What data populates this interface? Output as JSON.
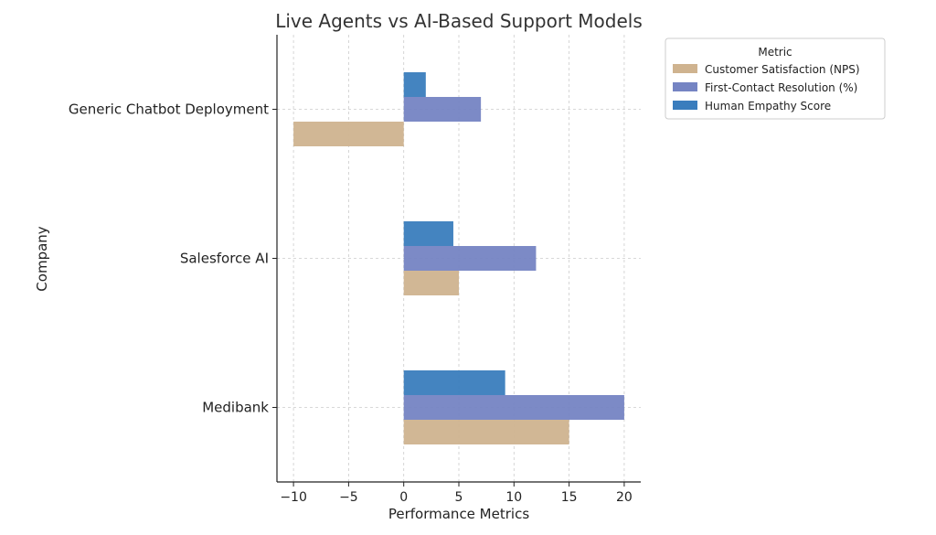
{
  "chart_data": {
    "type": "bar",
    "orientation": "horizontal",
    "title": "Live Agents vs AI-Based Support Models",
    "xlabel": "Performance Metrics",
    "ylabel": "Company",
    "categories": [
      "Medibank",
      "Salesforce AI",
      "Generic Chatbot Deployment"
    ],
    "series": [
      {
        "name": "Customer Satisfaction (NPS)",
        "color": "#cfb38f",
        "values": [
          15,
          5,
          -10
        ]
      },
      {
        "name": "First-Contact Resolution (%)",
        "color": "#7584c3",
        "values": [
          20,
          12,
          7
        ]
      },
      {
        "name": "Human Empathy Score",
        "color": "#3a7dbd",
        "values": [
          9.2,
          4.5,
          2
        ]
      }
    ],
    "xlim": [
      -11.5,
      21.5
    ],
    "xticks": [
      -10,
      -5,
      0,
      5,
      10,
      15,
      20
    ],
    "xtick_labels": [
      "−10",
      "−5",
      "0",
      "5",
      "10",
      "15",
      "20"
    ],
    "grid": true,
    "legend": {
      "title": "Metric",
      "placement": "outside-top-right"
    }
  }
}
